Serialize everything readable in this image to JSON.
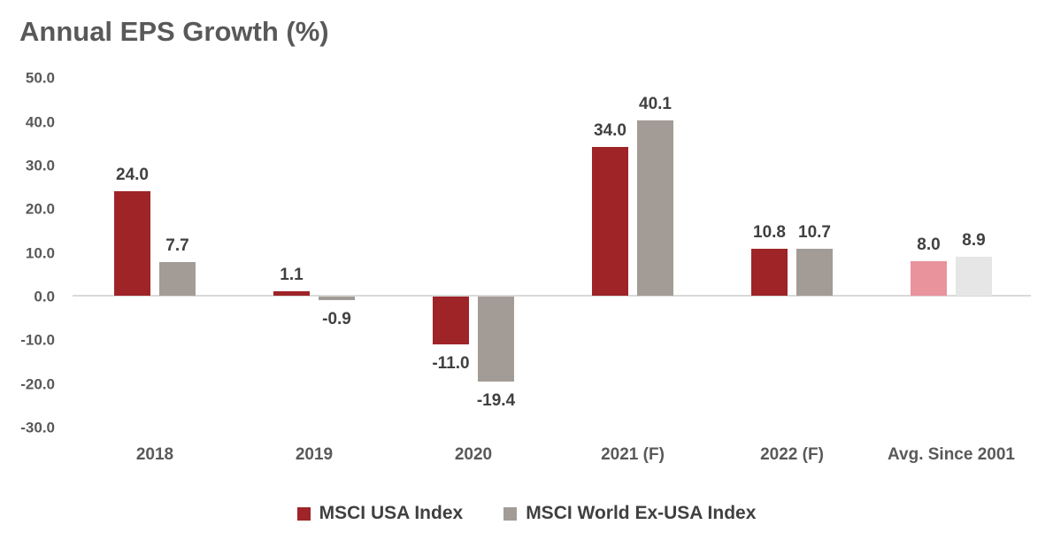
{
  "title": "Annual EPS Growth (%)",
  "chart_data": {
    "type": "bar",
    "title": "Annual EPS Growth (%)",
    "categories": [
      "2018",
      "2019",
      "2020",
      "2021 (F)",
      "2022 (F)",
      "Avg. Since 2001"
    ],
    "series": [
      {
        "name": "MSCI USA Index",
        "color": "#9E2428",
        "values": [
          24.0,
          1.1,
          -11.0,
          34.0,
          10.8,
          8.0
        ]
      },
      {
        "name": "MSCI World Ex-USA Index",
        "color": "#A39C96",
        "values": [
          7.7,
          -0.9,
          -19.4,
          40.1,
          10.7,
          8.9
        ]
      }
    ],
    "highlight_last_category_colors": [
      "#E9939C",
      "#E7E6E6"
    ],
    "y_ticks": [
      50.0,
      40.0,
      30.0,
      20.0,
      10.0,
      0.0,
      -10.0,
      -20.0,
      -30.0
    ],
    "ylim": [
      -30,
      50
    ],
    "xlabel": "",
    "ylabel": "",
    "grid": false,
    "legend_position": "bottom",
    "data_labels": true,
    "data_label_decimals": 1,
    "axis_line_color": "#D9D9D9",
    "text_colors": {
      "title": "#595959",
      "ticks": "#595959",
      "data_labels": "#404040",
      "legend": "#404040"
    }
  }
}
